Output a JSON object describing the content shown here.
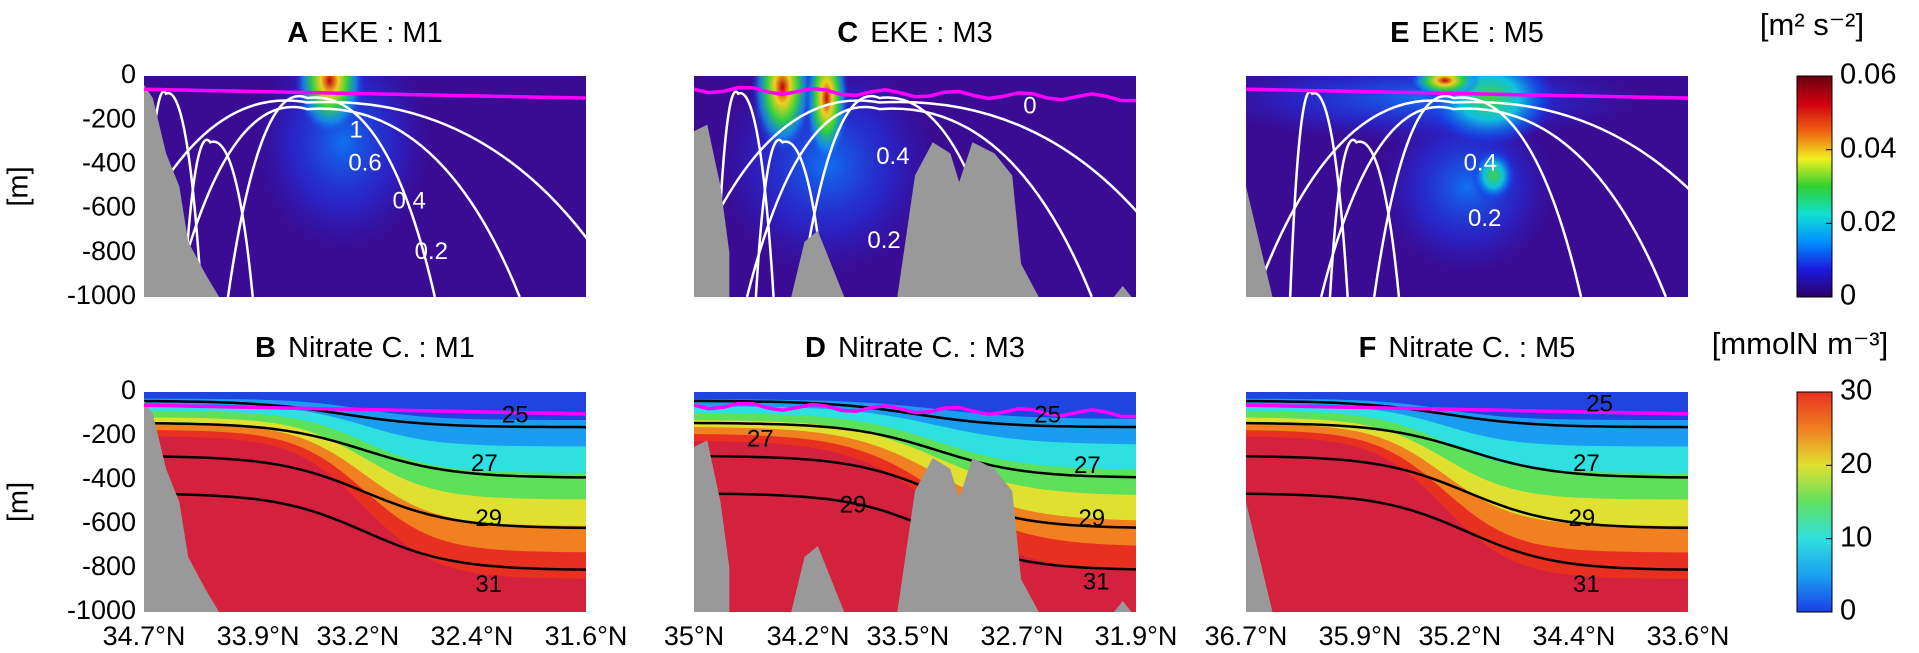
{
  "chart_data": [
    {
      "type": "contour",
      "letter": "A",
      "title": "EKE : M1",
      "field": "eke",
      "ylabel": "[m]",
      "ylim": [
        -1000,
        0
      ],
      "yticks": [
        0,
        -200,
        -400,
        -600,
        -800,
        -1000
      ],
      "contour_color": "#ffffff",
      "annotations": [
        "1",
        "0.6",
        "0.4",
        "0.2"
      ]
    },
    {
      "type": "contour",
      "letter": "C",
      "title": "EKE : M3",
      "field": "eke",
      "contour_color": "#ffffff",
      "annotations": [
        "0.4",
        "0.2",
        "0"
      ]
    },
    {
      "type": "contour",
      "letter": "E",
      "title": "EKE : M5",
      "field": "eke",
      "contour_color": "#ffffff",
      "annotations": [
        "0.4",
        "0.2"
      ]
    },
    {
      "type": "contour",
      "letter": "B",
      "title": "Nitrate C. : M1",
      "field": "nitrate",
      "ylabel": "[m]",
      "ylim": [
        -1000,
        0
      ],
      "yticks": [
        0,
        -200,
        -400,
        -600,
        -800,
        -1000
      ],
      "xlim": [
        34.7,
        31.6
      ],
      "xticks": [
        {
          "value": 34.7,
          "label": "34.7°N"
        },
        {
          "value": 33.9,
          "label": "33.9°N"
        },
        {
          "value": 33.2,
          "label": "33.2°N"
        },
        {
          "value": 32.4,
          "label": "32.4°N"
        },
        {
          "value": 31.6,
          "label": "31.6°N"
        }
      ],
      "contour_color": "#000000",
      "annotations": [
        "25",
        "27",
        "29",
        "31"
      ]
    },
    {
      "type": "contour",
      "letter": "D",
      "title": "Nitrate C. : M3",
      "field": "nitrate",
      "xlim": [
        35,
        31.9
      ],
      "xticks": [
        {
          "value": 35,
          "label": "35°N"
        },
        {
          "value": 34.2,
          "label": "34.2°N"
        },
        {
          "value": 33.5,
          "label": "33.5°N"
        },
        {
          "value": 32.7,
          "label": "32.7°N"
        },
        {
          "value": 31.9,
          "label": "31.9°N"
        }
      ],
      "contour_color": "#000000",
      "annotations": [
        "25",
        "27",
        "27",
        "29",
        "29",
        "31"
      ]
    },
    {
      "type": "contour",
      "letter": "F",
      "title": "Nitrate C. : M5",
      "field": "nitrate",
      "xlim": [
        36.7,
        33.6
      ],
      "xticks": [
        {
          "value": 36.7,
          "label": "36.7°N"
        },
        {
          "value": 35.9,
          "label": "35.9°N"
        },
        {
          "value": 35.2,
          "label": "35.2°N"
        },
        {
          "value": 34.4,
          "label": "34.4°N"
        },
        {
          "value": 33.6,
          "label": "33.6°N"
        }
      ],
      "contour_color": "#000000",
      "annotations": [
        "25",
        "27",
        "29",
        "31"
      ]
    }
  ],
  "colorbars": [
    {
      "label": "[m² s⁻²]",
      "lim": [
        0,
        0.06
      ],
      "ticks": [
        0,
        0.02,
        0.04,
        0.06
      ],
      "colors": [
        "#2c0066",
        "#1a1ae0",
        "#0090ff",
        "#10e0d0",
        "#30d030",
        "#f0f020",
        "#f06010",
        "#d00010",
        "#6a0010"
      ]
    },
    {
      "label": "[mmolN m⁻³]",
      "lim": [
        0,
        30
      ],
      "ticks": [
        0,
        10,
        20,
        30
      ],
      "colors": [
        "#1a3ee8",
        "#1aa0f0",
        "#30e0e0",
        "#60e060",
        "#e0e030",
        "#f08020",
        "#e83020"
      ]
    }
  ]
}
